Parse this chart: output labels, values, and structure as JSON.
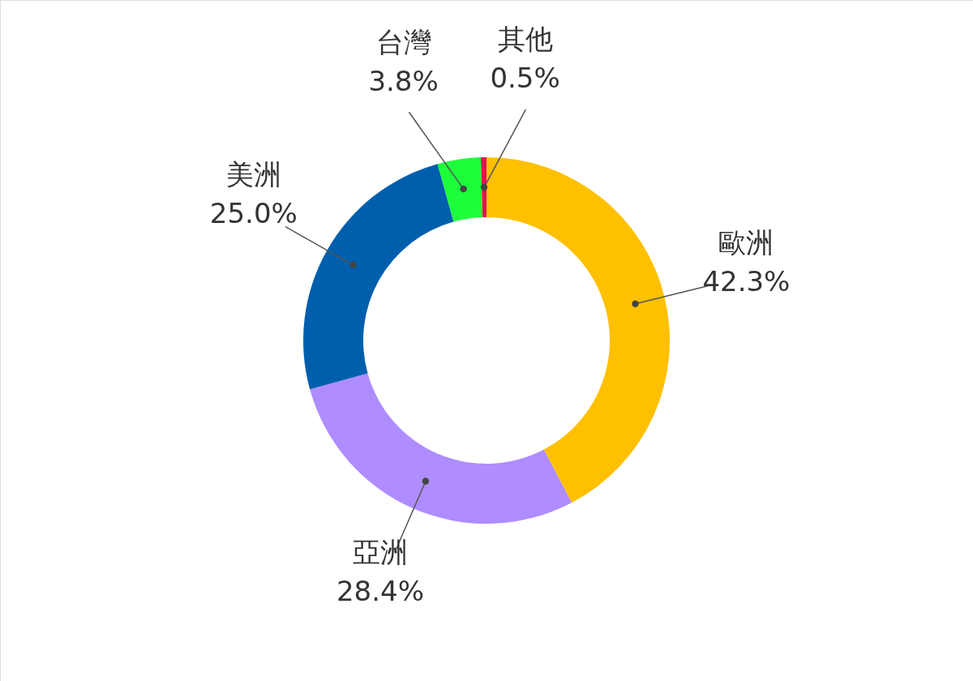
{
  "chart_data": {
    "type": "donut",
    "categories": [
      "歐洲",
      "亞洲",
      "美洲",
      "台灣",
      "其他"
    ],
    "values": [
      42.3,
      28.4,
      25.0,
      3.8,
      0.5
    ],
    "colors": [
      "#ffc000",
      "#af8cff",
      "#005fad",
      "#1eff3c",
      "#e8124f"
    ],
    "value_labels": [
      "42.3%",
      "28.4%",
      "25.0%",
      "3.8%",
      "0.5%"
    ]
  }
}
